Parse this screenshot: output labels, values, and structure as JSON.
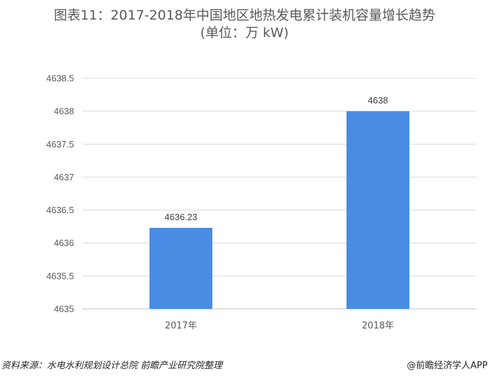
{
  "title": {
    "line1": "图表11：2017-2018年中国地区地热发电累计装机容量增长趋势",
    "line2": "(单位：万 kW)"
  },
  "footer": {
    "source": "资料来源：水电水利规划设计总院 前瞻产业研究院整理",
    "credit": "@前瞻经济学人APP"
  },
  "colors": {
    "bar": "#4A8CE4",
    "grid": "#D9D9D9",
    "axis": "#BFBFBF"
  },
  "chart_data": {
    "type": "bar",
    "categories": [
      "2017年",
      "2018年"
    ],
    "values": [
      4636.23,
      4638
    ],
    "value_labels": [
      "4636.23",
      "4638"
    ],
    "ylim": [
      4635,
      4638.5
    ],
    "yticks": [
      4635,
      4635.5,
      4636,
      4636.5,
      4637,
      4637.5,
      4638,
      4638.5
    ],
    "ytick_labels": [
      "4635",
      "4635.5",
      "4636",
      "4636.5",
      "4637",
      "4637.5",
      "4638",
      "4638.5"
    ],
    "grid": true,
    "legend": false
  }
}
